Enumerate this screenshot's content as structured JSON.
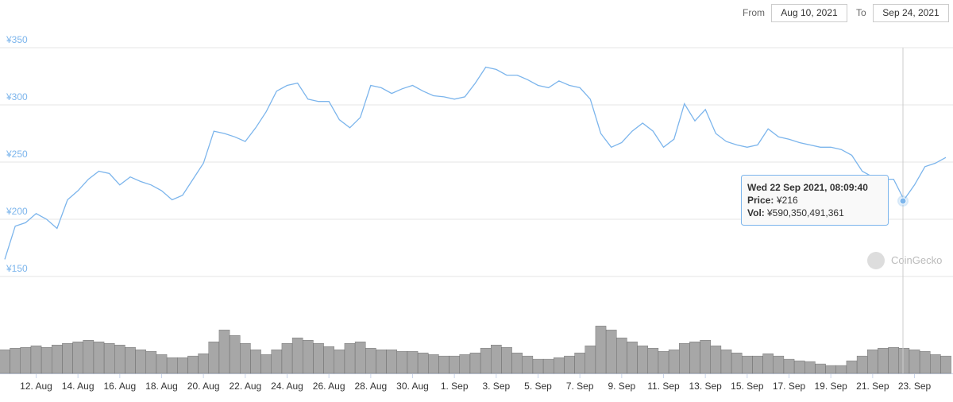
{
  "range": {
    "from_label": "From",
    "from": "Aug 10, 2021",
    "to_label": "To",
    "to": "Sep 24, 2021"
  },
  "watermark": "CoinGecko",
  "chart_data": {
    "type": "line",
    "x": [
      "2021-08-10T12:00",
      "2021-08-11T00:00",
      "2021-08-11T12:00",
      "2021-08-12T00:00",
      "2021-08-12T12:00",
      "2021-08-13T00:00",
      "2021-08-13T12:00",
      "2021-08-14T00:00",
      "2021-08-14T12:00",
      "2021-08-15T00:00",
      "2021-08-15T12:00",
      "2021-08-16T00:00",
      "2021-08-16T12:00",
      "2021-08-17T00:00",
      "2021-08-17T12:00",
      "2021-08-18T00:00",
      "2021-08-18T12:00",
      "2021-08-19T00:00",
      "2021-08-19T12:00",
      "2021-08-20T00:00",
      "2021-08-20T12:00",
      "2021-08-21T00:00",
      "2021-08-21T12:00",
      "2021-08-22T00:00",
      "2021-08-22T12:00",
      "2021-08-23T00:00",
      "2021-08-23T12:00",
      "2021-08-24T00:00",
      "2021-08-24T12:00",
      "2021-08-25T00:00",
      "2021-08-25T12:00",
      "2021-08-26T00:00",
      "2021-08-26T12:00",
      "2021-08-27T00:00",
      "2021-08-27T12:00",
      "2021-08-28T00:00",
      "2021-08-28T12:00",
      "2021-08-29T00:00",
      "2021-08-29T12:00",
      "2021-08-30T00:00",
      "2021-08-30T12:00",
      "2021-08-31T00:00",
      "2021-08-31T12:00",
      "2021-09-01T00:00",
      "2021-09-01T12:00",
      "2021-09-02T00:00",
      "2021-09-02T12:00",
      "2021-09-03T00:00",
      "2021-09-03T12:00",
      "2021-09-04T00:00",
      "2021-09-04T12:00",
      "2021-09-05T00:00",
      "2021-09-05T12:00",
      "2021-09-06T00:00",
      "2021-09-06T12:00",
      "2021-09-07T00:00",
      "2021-09-07T12:00",
      "2021-09-08T00:00",
      "2021-09-08T12:00",
      "2021-09-09T00:00",
      "2021-09-09T12:00",
      "2021-09-10T00:00",
      "2021-09-10T12:00",
      "2021-09-11T00:00",
      "2021-09-11T12:00",
      "2021-09-12T00:00",
      "2021-09-12T12:00",
      "2021-09-13T00:00",
      "2021-09-13T12:00",
      "2021-09-14T00:00",
      "2021-09-14T12:00",
      "2021-09-15T00:00",
      "2021-09-15T12:00",
      "2021-09-16T00:00",
      "2021-09-16T12:00",
      "2021-09-17T00:00",
      "2021-09-17T12:00",
      "2021-09-18T00:00",
      "2021-09-18T12:00",
      "2021-09-19T00:00",
      "2021-09-19T12:00",
      "2021-09-20T00:00",
      "2021-09-20T12:00",
      "2021-09-21T00:00",
      "2021-09-21T12:00",
      "2021-09-22T00:00",
      "2021-09-22T12:00",
      "2021-09-23T00:00",
      "2021-09-23T12:00",
      "2021-09-24T00:00",
      "2021-09-24T12:00"
    ],
    "series": [
      {
        "name": "Price",
        "color": "#7cb5ec",
        "values": [
          165,
          194,
          197,
          205,
          200,
          192,
          217,
          225,
          235,
          242,
          240,
          230,
          237,
          233,
          230,
          225,
          217,
          221,
          235,
          249,
          277,
          275,
          272,
          268,
          280,
          294,
          312,
          317,
          319,
          305,
          303,
          303,
          287,
          280,
          289,
          317,
          315,
          310,
          314,
          317,
          312,
          308,
          307,
          305,
          307,
          319,
          333,
          331,
          326,
          326,
          322,
          317,
          315,
          321,
          317,
          315,
          305,
          275,
          263,
          267,
          277,
          284,
          277,
          263,
          270,
          301,
          286,
          296,
          275,
          268,
          265,
          263,
          265,
          279,
          272,
          270,
          267,
          265,
          263,
          263,
          261,
          256,
          242,
          237,
          235,
          235,
          217,
          230,
          246,
          249,
          254
        ]
      },
      {
        "name": "Volume",
        "color": "#8a8a8a",
        "axis": "y2",
        "values": [
          540000000000.0,
          576000000000.0,
          594000000000.0,
          630000000000.0,
          594000000000.0,
          648000000000.0,
          684000000000.0,
          720000000000.0,
          756000000000.0,
          720000000000.0,
          684000000000.0,
          648000000000.0,
          594000000000.0,
          540000000000.0,
          504000000000.0,
          432000000000.0,
          360000000000.0,
          360000000000.0,
          396000000000.0,
          450000000000.0,
          720000000000.0,
          990000000000.0,
          864000000000.0,
          684000000000.0,
          540000000000.0,
          432000000000.0,
          540000000000.0,
          684000000000.0,
          810000000000.0,
          756000000000.0,
          684000000000.0,
          612000000000.0,
          540000000000.0,
          684000000000.0,
          720000000000.0,
          576000000000.0,
          540000000000.0,
          540000000000.0,
          504000000000.0,
          504000000000.0,
          468000000000.0,
          432000000000.0,
          396000000000.0,
          396000000000.0,
          432000000000.0,
          468000000000.0,
          576000000000.0,
          648000000000.0,
          594000000000.0,
          468000000000.0,
          396000000000.0,
          324000000000.0,
          324000000000.0,
          360000000000.0,
          396000000000.0,
          468000000000.0,
          630000000000.0,
          1080000000000.0,
          990000000000.0,
          810000000000.0,
          720000000000.0,
          630000000000.0,
          576000000000.0,
          504000000000.0,
          540000000000.0,
          684000000000.0,
          720000000000.0,
          756000000000.0,
          630000000000.0,
          540000000000.0,
          468000000000.0,
          396000000000.0,
          396000000000.0,
          450000000000.0,
          396000000000.0,
          324000000000.0,
          288000000000.0,
          270000000000.0,
          216000000000.0,
          180000000000.0,
          180000000000.0,
          288000000000.0,
          396000000000.0,
          540000000000.0,
          576000000000.0,
          594000000000.0,
          576000000000.0,
          540000000000.0,
          504000000000.0,
          432000000000.0,
          396000000000.0
        ]
      }
    ],
    "xlim": [
      "2021-08-10T12:00",
      "2021-09-24T12:00"
    ],
    "xticks": [
      {
        "value": "2021-08-12T00:00",
        "label": "12. Aug"
      },
      {
        "value": "2021-08-14T00:00",
        "label": "14. Aug"
      },
      {
        "value": "2021-08-16T00:00",
        "label": "16. Aug"
      },
      {
        "value": "2021-08-18T00:00",
        "label": "18. Aug"
      },
      {
        "value": "2021-08-20T00:00",
        "label": "20. Aug"
      },
      {
        "value": "2021-08-22T00:00",
        "label": "22. Aug"
      },
      {
        "value": "2021-08-24T00:00",
        "label": "24. Aug"
      },
      {
        "value": "2021-08-26T00:00",
        "label": "26. Aug"
      },
      {
        "value": "2021-08-28T00:00",
        "label": "28. Aug"
      },
      {
        "value": "2021-08-30T00:00",
        "label": "30. Aug"
      },
      {
        "value": "2021-09-01T00:00",
        "label": "1. Sep"
      },
      {
        "value": "2021-09-03T00:00",
        "label": "3. Sep"
      },
      {
        "value": "2021-09-05T00:00",
        "label": "5. Sep"
      },
      {
        "value": "2021-09-07T00:00",
        "label": "7. Sep"
      },
      {
        "value": "2021-09-09T00:00",
        "label": "9. Sep"
      },
      {
        "value": "2021-09-11T00:00",
        "label": "11. Sep"
      },
      {
        "value": "2021-09-13T00:00",
        "label": "13. Sep"
      },
      {
        "value": "2021-09-15T00:00",
        "label": "15. Sep"
      },
      {
        "value": "2021-09-17T00:00",
        "label": "17. Sep"
      },
      {
        "value": "2021-09-19T00:00",
        "label": "19. Sep"
      },
      {
        "value": "2021-09-21T00:00",
        "label": "21. Sep"
      },
      {
        "value": "2021-09-23T00:00",
        "label": "23. Sep"
      }
    ],
    "ylim": [
      150,
      350
    ],
    "yticks": [
      {
        "value": 150,
        "label": "¥150"
      },
      {
        "value": 200,
        "label": "¥200"
      },
      {
        "value": 250,
        "label": "¥250"
      },
      {
        "value": 300,
        "label": "¥300"
      },
      {
        "value": 350,
        "label": "¥350"
      }
    ],
    "y2lim": [
      0,
      1900000000000.0
    ],
    "grid": true,
    "tooltip": {
      "date": "Wed 22 Sep 2021, 08:09:40",
      "price_label": "Price:",
      "price": "¥216",
      "vol_label": "Vol:",
      "vol": "¥590,350,491,361"
    }
  }
}
